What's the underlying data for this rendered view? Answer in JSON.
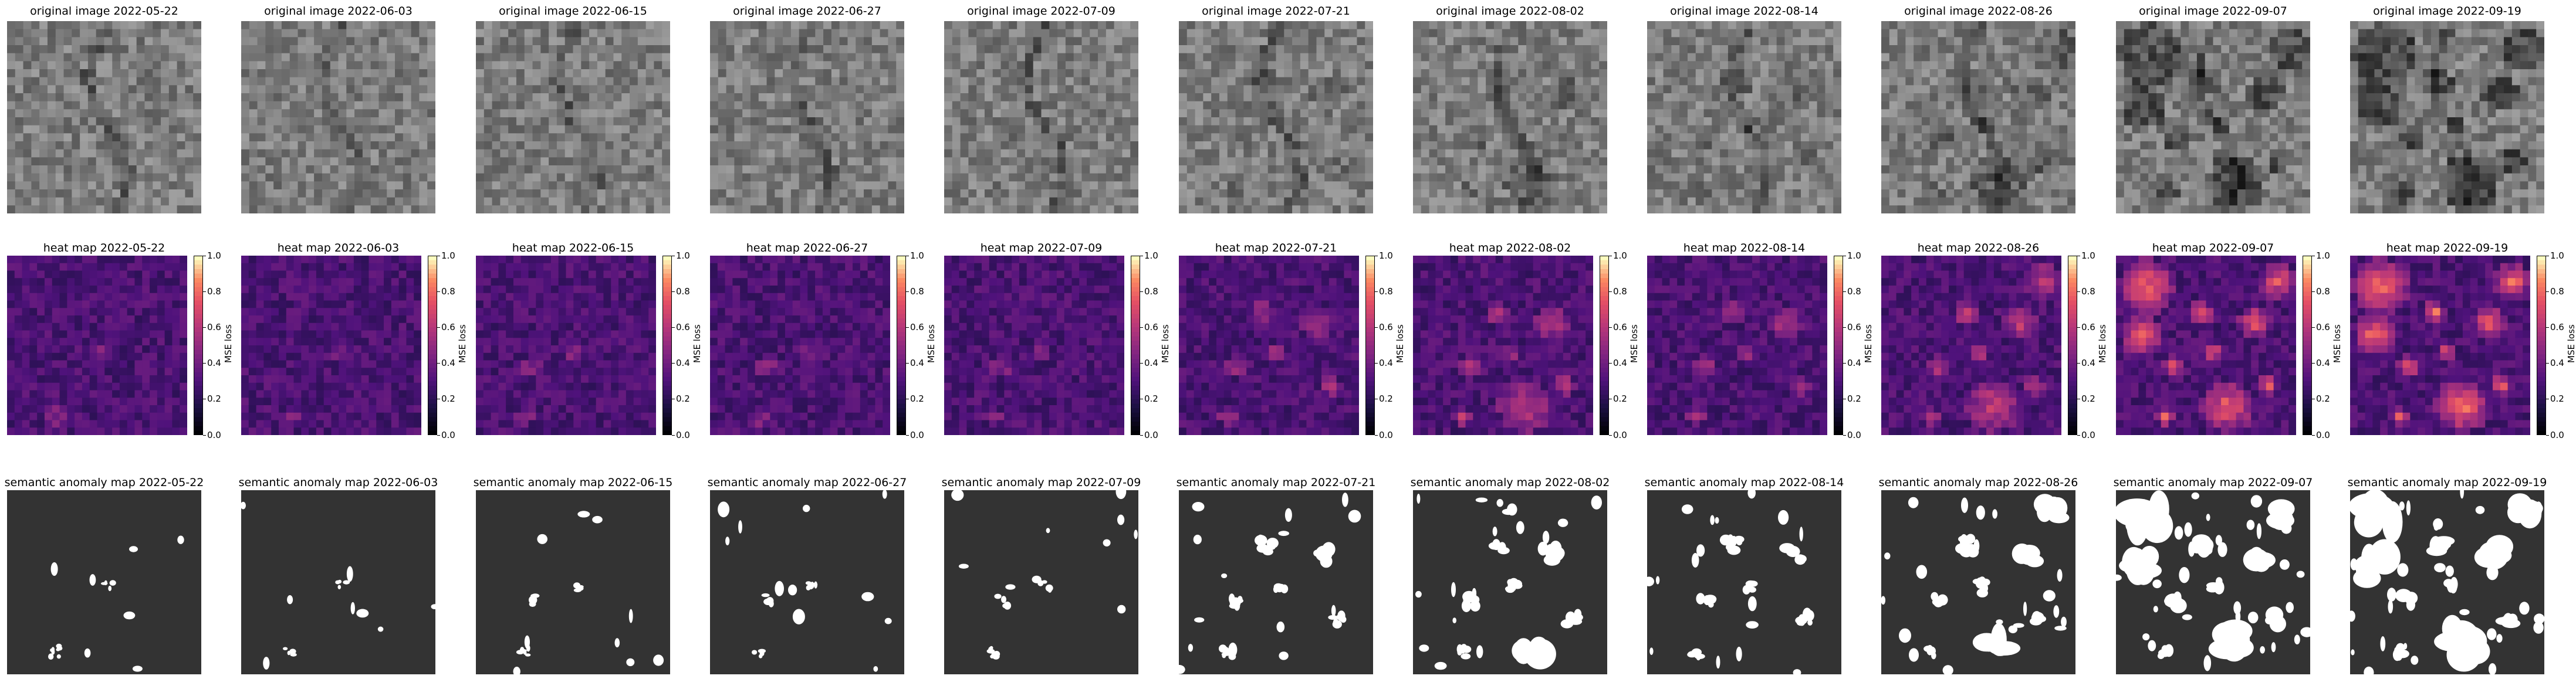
{
  "figure": {
    "rows": [
      {
        "key": "original",
        "title_prefix": "original image",
        "kind": "grayscale"
      },
      {
        "key": "heat",
        "title_prefix": "heat map",
        "kind": "heatmap",
        "colorbar": {
          "label": "MSE loss",
          "ticks": [
            "0.0",
            "0.2",
            "0.4",
            "0.6",
            "0.8",
            "1.0"
          ],
          "range": [
            0.0,
            1.0
          ],
          "colormap": "magma"
        }
      },
      {
        "key": "semantic",
        "title_prefix": "semantic anomaly map",
        "kind": "binary"
      }
    ],
    "dates": [
      "2022-05-22",
      "2022-06-03",
      "2022-06-15",
      "2022-06-27",
      "2022-07-09",
      "2022-07-21",
      "2022-08-02",
      "2022-08-14",
      "2022-08-26",
      "2022-09-07",
      "2022-09-19"
    ],
    "titles": {
      "original": [
        "original image 2022-05-22",
        "original image 2022-06-03",
        "original image 2022-06-15",
        "original image 2022-06-27",
        "original image 2022-07-09",
        "original image 2022-07-21",
        "original image 2022-08-02",
        "original image 2022-08-14",
        "original image 2022-08-26",
        "original image 2022-09-07",
        "original image 2022-09-19"
      ],
      "heat": [
        "heat map 2022-05-22",
        "heat map 2022-06-03",
        "heat map 2022-06-15",
        "heat map 2022-06-27",
        "heat map 2022-07-09",
        "heat map 2022-07-21",
        "heat map 2022-08-02",
        "heat map 2022-08-14",
        "heat map 2022-08-26",
        "heat map 2022-09-07",
        "heat map 2022-09-19"
      ],
      "semantic": [
        "semantic anomaly map 2022-05-22",
        "semantic anomaly map 2022-06-03",
        "semantic anomaly map 2022-06-15",
        "semantic anomaly map 2022-06-27",
        "semantic anomaly map 2022-07-09",
        "semantic anomaly map 2022-07-21",
        "semantic anomaly map 2022-08-02",
        "semantic anomaly map 2022-08-14",
        "semantic anomaly map 2022-08-26",
        "semantic anomaly map 2022-09-07",
        "semantic anomaly map 2022-09-19"
      ]
    },
    "anomaly_intensity": [
      0.05,
      0.05,
      0.1,
      0.15,
      0.12,
      0.3,
      0.45,
      0.4,
      0.55,
      0.85,
      0.95
    ],
    "colors": {
      "semantic_background": "#333333",
      "semantic_foreground": "#ffffff"
    }
  }
}
